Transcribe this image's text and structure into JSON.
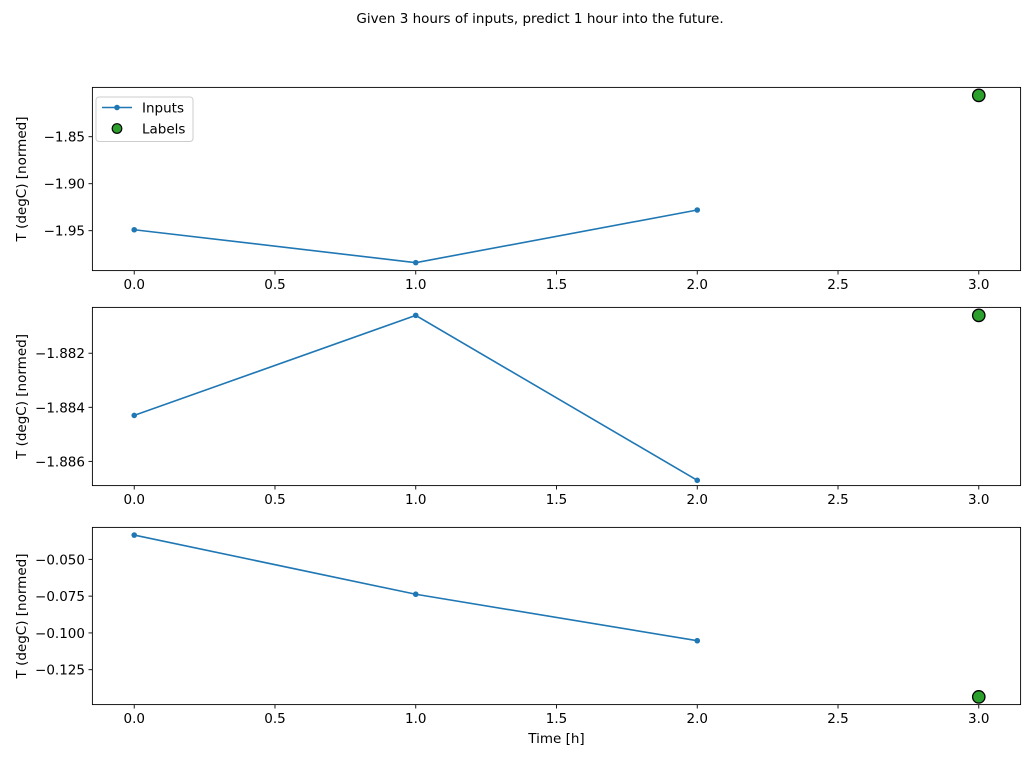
{
  "figure": {
    "title": "Given 3 hours of inputs, predict 1 hour into the future.",
    "background": "#ffffff"
  },
  "legend": {
    "position": "upper-left",
    "entries": [
      {
        "label": "Inputs",
        "type": "line",
        "color": "#1f77b4"
      },
      {
        "label": "Labels",
        "type": "scatter",
        "color": "#2ca02c",
        "edge_color": "#000000"
      }
    ]
  },
  "chart_data": [
    {
      "type": "line",
      "title": "",
      "xlabel": "",
      "ylabel": "T (degC) [normed]",
      "xlim": [
        -0.15,
        3.15
      ],
      "ylim": [
        -1.9929,
        -1.7971
      ],
      "xticks": [
        0.0,
        0.5,
        1.0,
        1.5,
        2.0,
        2.5,
        3.0
      ],
      "xtick_labels": [
        "0.0",
        "0.5",
        "1.0",
        "1.5",
        "2.0",
        "2.5",
        "3.0"
      ],
      "yticks": [
        -1.85,
        -1.9,
        -1.95
      ],
      "ytick_labels": [
        "−1.85",
        "−1.90",
        "−1.95"
      ],
      "grid": false,
      "legend_visible": true,
      "series": [
        {
          "name": "Inputs",
          "type": "line",
          "color": "#1f77b4",
          "x": [
            0,
            1,
            2
          ],
          "y": [
            -1.949,
            -1.984,
            -1.928
          ]
        },
        {
          "name": "Labels",
          "type": "scatter",
          "color": "#2ca02c",
          "edge_color": "#000000",
          "x": [
            3
          ],
          "y": [
            -1.806
          ]
        }
      ]
    },
    {
      "type": "line",
      "title": "",
      "xlabel": "",
      "ylabel": "T (degC) [normed]",
      "xlim": [
        -0.15,
        3.15
      ],
      "ylim": [
        -1.88691,
        -1.88029
      ],
      "xticks": [
        0.0,
        0.5,
        1.0,
        1.5,
        2.0,
        2.5,
        3.0
      ],
      "xtick_labels": [
        "0.0",
        "0.5",
        "1.0",
        "1.5",
        "2.0",
        "2.5",
        "3.0"
      ],
      "yticks": [
        -1.882,
        -1.884,
        -1.886
      ],
      "ytick_labels": [
        "−1.882",
        "−1.884",
        "−1.886"
      ],
      "grid": false,
      "legend_visible": false,
      "series": [
        {
          "name": "Inputs",
          "type": "line",
          "color": "#1f77b4",
          "x": [
            0,
            1,
            2
          ],
          "y": [
            -1.8843,
            -1.8806,
            -1.8867
          ]
        },
        {
          "name": "Labels",
          "type": "scatter",
          "color": "#2ca02c",
          "edge_color": "#000000",
          "x": [
            3
          ],
          "y": [
            -1.8806
          ]
        }
      ]
    },
    {
      "type": "line",
      "title": "",
      "xlabel": "Time [h]",
      "ylabel": "T (degC) [normed]",
      "xlim": [
        -0.15,
        3.15
      ],
      "ylim": [
        -0.149,
        -0.028
      ],
      "xticks": [
        0.0,
        0.5,
        1.0,
        1.5,
        2.0,
        2.5,
        3.0
      ],
      "xtick_labels": [
        "0.0",
        "0.5",
        "1.0",
        "1.5",
        "2.0",
        "2.5",
        "3.0"
      ],
      "yticks": [
        -0.05,
        -0.075,
        -0.1,
        -0.125
      ],
      "ytick_labels": [
        "−0.050",
        "−0.075",
        "−0.100",
        "−0.125"
      ],
      "grid": false,
      "legend_visible": false,
      "series": [
        {
          "name": "Inputs",
          "type": "line",
          "color": "#1f77b4",
          "x": [
            0,
            1,
            2
          ],
          "y": [
            -0.0335,
            -0.0737,
            -0.1053
          ]
        },
        {
          "name": "Labels",
          "type": "scatter",
          "color": "#2ca02c",
          "edge_color": "#000000",
          "x": [
            3
          ],
          "y": [
            -0.1435
          ]
        }
      ]
    }
  ]
}
